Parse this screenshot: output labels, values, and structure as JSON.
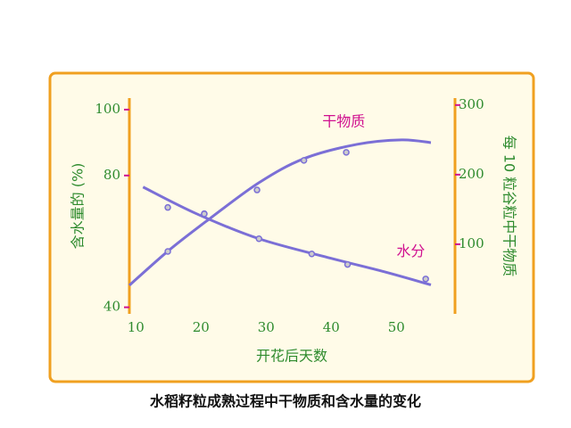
{
  "chart_data": {
    "type": "line",
    "title": "水稻籽粒成熟过程中干物质和含水量的变化",
    "x_label": "开花后天数",
    "y_label": "含水量的 (%)",
    "y2_label": "每 10 粒谷粒中干物质",
    "xlim": [
      9,
      59
    ],
    "xticks": [
      10,
      20,
      30,
      40,
      50
    ],
    "ylim": [
      38,
      103.5
    ],
    "yticks": [
      40,
      80,
      100
    ],
    "y2lim": [
      0,
      310
    ],
    "y2ticks": [
      100,
      200,
      300
    ],
    "series": [
      {
        "name": "水分",
        "color": "#7b6fd6",
        "axis": "y",
        "x": [
          11.1,
          19.3,
          28.9,
          39.9,
          48.1,
          55.3
        ],
        "values": [
          76.5,
          68.4,
          60.8,
          54.9,
          50.8,
          46.8
        ],
        "points_x": [
          14.9,
          20.5,
          28.9,
          37,
          42.5,
          54.5
        ],
        "points_values": [
          70.3,
          68.4,
          60.8,
          56.2,
          53,
          48.6
        ]
      },
      {
        "name": "干物质",
        "color": "#7b6fd6",
        "axis": "y2",
        "x": [
          9,
          15.2,
          21.4,
          28.9,
          35.8,
          44,
          50.8,
          55.3
        ],
        "values": [
          41,
          92.3,
          137.2,
          188.5,
          223,
          243.6,
          250,
          246
        ],
        "points_x": [
          14.9,
          20.5,
          28.6,
          35.8,
          42.3
        ],
        "points_values": [
          89.7,
          143.6,
          178,
          220.5,
          232
        ]
      }
    ]
  }
}
